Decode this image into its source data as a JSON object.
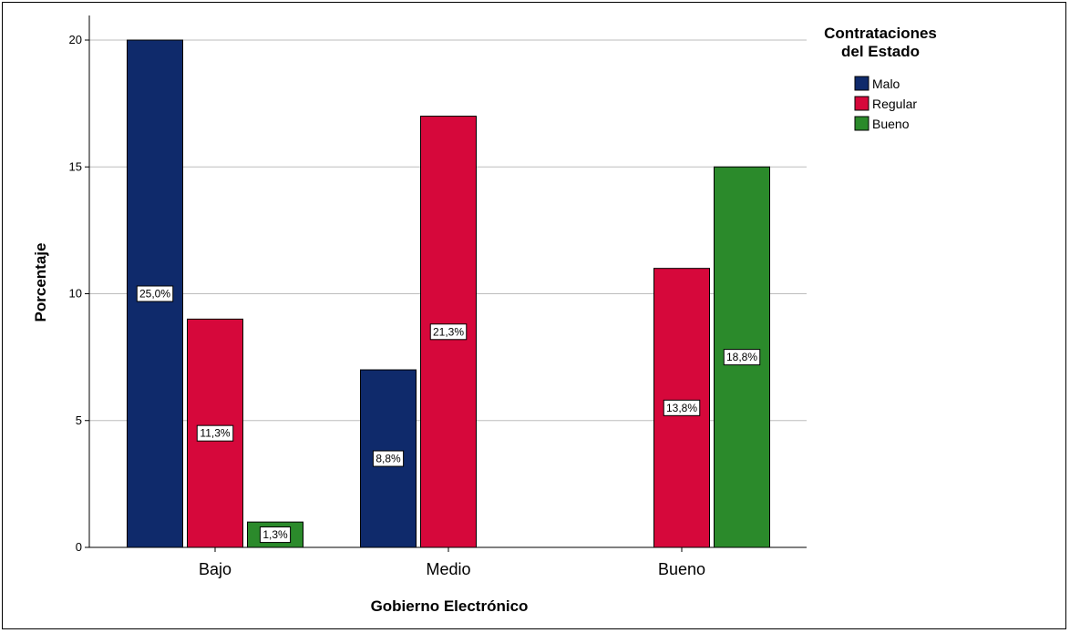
{
  "chart_data": {
    "type": "bar",
    "ylabel": "Porcentaje",
    "xlabel": "Gobierno Electrónico",
    "ylim": [
      0,
      21
    ],
    "yticks": [
      0,
      5,
      10,
      15,
      20
    ],
    "grid": true,
    "legend_position": "top-right",
    "legend_title_lines": [
      "Contrataciones",
      "del Estado"
    ],
    "categories": [
      "Bajo",
      "Medio",
      "Bueno"
    ],
    "series": [
      {
        "name": "Malo",
        "color": "#0f2a6b",
        "values": [
          20,
          7,
          null
        ],
        "labels": [
          "25,0%",
          "8,8%",
          null
        ]
      },
      {
        "name": "Regular",
        "color": "#d6083b",
        "values": [
          9,
          17,
          11
        ],
        "labels": [
          "11,3%",
          "21,3%",
          "13,8%"
        ]
      },
      {
        "name": "Bueno",
        "color": "#2b8a2b",
        "values": [
          1,
          null,
          15
        ],
        "labels": [
          "1,3%",
          null,
          "18,8%"
        ]
      }
    ]
  }
}
